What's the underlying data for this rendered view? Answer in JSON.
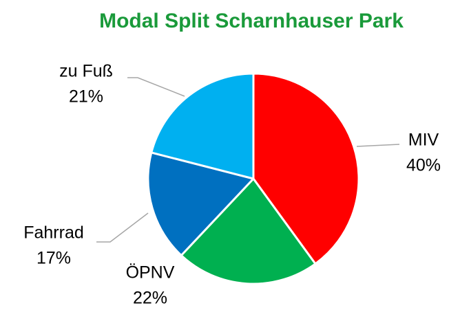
{
  "chart_data": {
    "type": "pie",
    "title": "Modal Split Scharnhauser Park",
    "categories": [
      "MIV",
      "ÖPNV",
      "Fahrrad",
      "zu Fuß"
    ],
    "values": [
      40,
      22,
      17,
      21
    ],
    "value_labels": [
      "40%",
      "22%",
      "17%",
      "21%"
    ],
    "colors": [
      "#ff0000",
      "#00b050",
      "#0070c0",
      "#00b0f0"
    ]
  }
}
